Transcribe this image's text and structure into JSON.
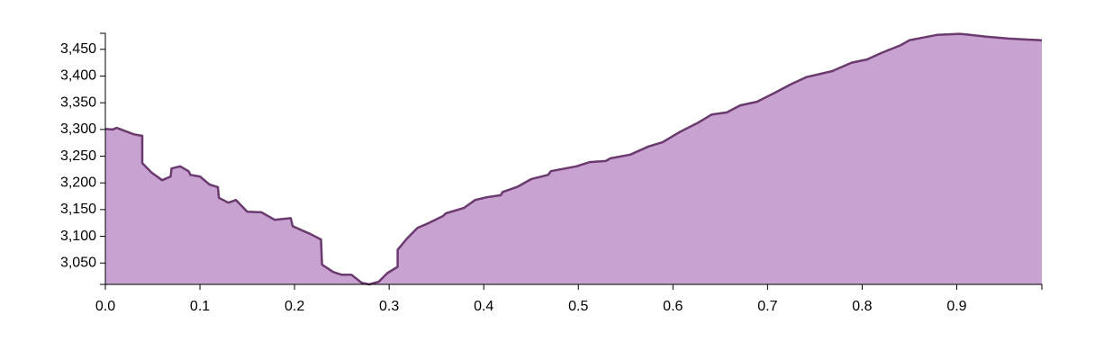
{
  "chart_data": {
    "type": "area",
    "x": [
      0,
      0.0076,
      0.012,
      0.03,
      0.039,
      0.039,
      0.049,
      0.06,
      0.069,
      0.07,
      0.079,
      0.088,
      0.09,
      0.1,
      0.11,
      0.119,
      0.12,
      0.13,
      0.138,
      0.15,
      0.165,
      0.179,
      0.196,
      0.198,
      0.217,
      0.228,
      0.229,
      0.241,
      0.25,
      0.26,
      0.271,
      0.279,
      0.289,
      0.298,
      0.309,
      0.309,
      0.319,
      0.33,
      0.341,
      0.357,
      0.36,
      0.379,
      0.391,
      0.403,
      0.418,
      0.42,
      0.436,
      0.45,
      0.468,
      0.471,
      0.498,
      0.512,
      0.529,
      0.534,
      0.555,
      0.574,
      0.589,
      0.608,
      0.627,
      0.641,
      0.657,
      0.671,
      0.689,
      0.708,
      0.724,
      0.741,
      0.768,
      0.789,
      0.805,
      0.82,
      0.841,
      0.85,
      0.879,
      0.903,
      0.91,
      0.93,
      0.955,
      0.99
    ],
    "values": [
      3301,
      3300,
      3303,
      3291,
      3288,
      3237,
      3219,
      3205,
      3212,
      3227,
      3231,
      3222,
      3215,
      3212,
      3197,
      3192,
      3172,
      3163,
      3168,
      3146,
      3145,
      3131,
      3134,
      3119,
      3104,
      3094,
      3047,
      3033,
      3028,
      3028,
      3013,
      3010,
      3015,
      3031,
      3043,
      3075,
      3096,
      3116,
      3124,
      3138,
      3143,
      3153,
      3168,
      3173,
      3177,
      3183,
      3193,
      3207,
      3215,
      3222,
      3231,
      3239,
      3241,
      3246,
      3253,
      3268,
      3276,
      3296,
      3313,
      3328,
      3332,
      3345,
      3352,
      3369,
      3384,
      3398,
      3409,
      3425,
      3431,
      3443,
      3458,
      3467,
      3477,
      3479,
      3478,
      3474,
      3470,
      3467
    ],
    "color": "#c8a2d0",
    "stroke": "#6b3a6e",
    "xlim": [
      0,
      0.99
    ],
    "ylim": [
      3010,
      3480
    ],
    "xticks": [
      {
        "value": 0,
        "label": "0.0"
      },
      0.1,
      0.2,
      0.3,
      0.4,
      0.5,
      0.6,
      0.7,
      0.8,
      0.9
    ],
    "yticks": [
      {
        "value": 3050,
        "label": "3,050"
      },
      {
        "value": 3100,
        "label": "3,100"
      },
      {
        "value": 3150,
        "label": "3,150"
      },
      {
        "value": 3200,
        "label": "3,200"
      },
      {
        "value": 3250,
        "label": "3,250"
      },
      {
        "value": 3300,
        "label": "3,300"
      },
      {
        "value": 3350,
        "label": "3,350"
      },
      {
        "value": 3400,
        "label": "3,400"
      },
      {
        "value": 3450,
        "label": "3,450"
      }
    ]
  }
}
